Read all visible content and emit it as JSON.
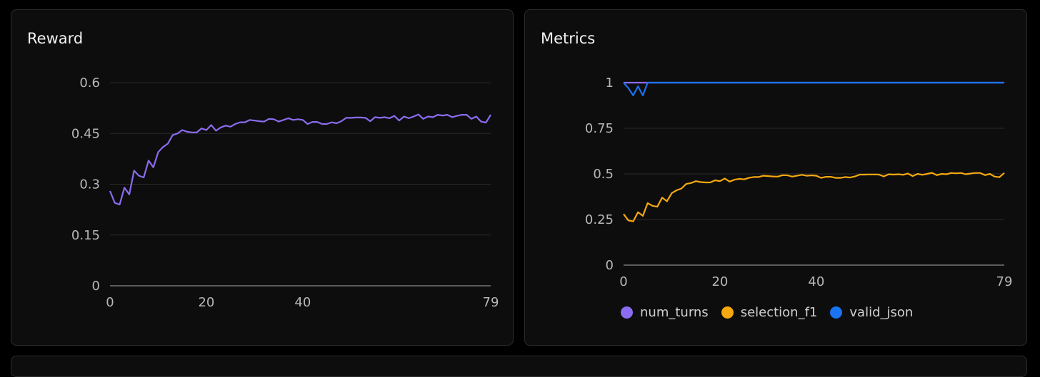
{
  "colors": {
    "num_turns": "#8b6cf0",
    "selection_f1": "#f5a80f",
    "valid_json": "#1a73f0"
  },
  "chart_data": [
    {
      "type": "line",
      "title": "Reward",
      "x": [
        0,
        1,
        2,
        3,
        4,
        5,
        6,
        7,
        8,
        9,
        10,
        11,
        12,
        13,
        14,
        15,
        16,
        17,
        18,
        19,
        20,
        21,
        22,
        23,
        24,
        25,
        26,
        27,
        28,
        29,
        30,
        31,
        32,
        33,
        34,
        35,
        36,
        37,
        38,
        39,
        40,
        41,
        42,
        43,
        44,
        45,
        46,
        47,
        48,
        49,
        50,
        51,
        52,
        53,
        54,
        55,
        56,
        57,
        58,
        59,
        60,
        61,
        62,
        63,
        64,
        65,
        66,
        67,
        68,
        69,
        70,
        71,
        72,
        73,
        74,
        75,
        76,
        77,
        78,
        79
      ],
      "series": [
        {
          "key": "num_turns",
          "values": [
            0.28,
            0.245,
            0.24,
            0.29,
            0.27,
            0.34,
            0.325,
            0.32,
            0.37,
            0.35,
            0.395,
            0.41,
            0.42,
            0.445,
            0.45,
            0.46,
            0.455,
            0.453,
            0.453,
            0.465,
            0.46,
            0.475,
            0.458,
            0.468,
            0.473,
            0.47,
            0.478,
            0.483,
            0.483,
            0.49,
            0.488,
            0.486,
            0.485,
            0.493,
            0.492,
            0.485,
            0.49,
            0.495,
            0.49,
            0.492,
            0.49,
            0.478,
            0.484,
            0.484,
            0.478,
            0.478,
            0.483,
            0.48,
            0.486,
            0.496,
            0.496,
            0.497,
            0.497,
            0.496,
            0.486,
            0.498,
            0.496,
            0.498,
            0.495,
            0.502,
            0.488,
            0.5,
            0.495,
            0.5,
            0.506,
            0.493,
            0.5,
            0.498,
            0.505,
            0.503,
            0.505,
            0.498,
            0.502,
            0.505,
            0.505,
            0.493,
            0.5,
            0.485,
            0.482,
            0.505
          ]
        }
      ],
      "xticks": [
        "0",
        "20",
        "40",
        "79"
      ],
      "xtick_values": [
        0,
        20,
        40,
        79
      ],
      "yticks": [
        "0",
        "0.15",
        "0.3",
        "0.45",
        "0.6"
      ],
      "ytick_values": [
        0,
        0.15,
        0.3,
        0.45,
        0.6
      ],
      "xlim": [
        0,
        79
      ],
      "ylim": [
        0,
        0.6
      ],
      "grid": true
    },
    {
      "type": "line",
      "title": "Metrics",
      "x": [
        0,
        1,
        2,
        3,
        4,
        5,
        6,
        7,
        8,
        9,
        10,
        11,
        12,
        13,
        14,
        15,
        16,
        17,
        18,
        19,
        20,
        21,
        22,
        23,
        24,
        25,
        26,
        27,
        28,
        29,
        30,
        31,
        32,
        33,
        34,
        35,
        36,
        37,
        38,
        39,
        40,
        41,
        42,
        43,
        44,
        45,
        46,
        47,
        48,
        49,
        50,
        51,
        52,
        53,
        54,
        55,
        56,
        57,
        58,
        59,
        60,
        61,
        62,
        63,
        64,
        65,
        66,
        67,
        68,
        69,
        70,
        71,
        72,
        73,
        74,
        75,
        76,
        77,
        78,
        79
      ],
      "series": [
        {
          "key": "num_turns",
          "name": "num_turns",
          "values": [
            1,
            1,
            1,
            1,
            1,
            1,
            1,
            1,
            1,
            1,
            1,
            1,
            1,
            1,
            1,
            1,
            1,
            1,
            1,
            1,
            1,
            1,
            1,
            1,
            1,
            1,
            1,
            1,
            1,
            1,
            1,
            1,
            1,
            1,
            1,
            1,
            1,
            1,
            1,
            1,
            1,
            1,
            1,
            1,
            1,
            1,
            1,
            1,
            1,
            1,
            1,
            1,
            1,
            1,
            1,
            1,
            1,
            1,
            1,
            1,
            1,
            1,
            1,
            1,
            1,
            1,
            1,
            1,
            1,
            1,
            1,
            1,
            1,
            1,
            1,
            1,
            1,
            1,
            1,
            1
          ]
        },
        {
          "key": "selection_f1",
          "name": "selection_f1",
          "values": [
            0.28,
            0.245,
            0.24,
            0.29,
            0.27,
            0.34,
            0.325,
            0.32,
            0.37,
            0.35,
            0.395,
            0.41,
            0.42,
            0.445,
            0.45,
            0.46,
            0.455,
            0.453,
            0.453,
            0.465,
            0.46,
            0.475,
            0.458,
            0.468,
            0.473,
            0.47,
            0.478,
            0.483,
            0.483,
            0.49,
            0.488,
            0.486,
            0.485,
            0.493,
            0.492,
            0.485,
            0.49,
            0.495,
            0.49,
            0.492,
            0.49,
            0.478,
            0.484,
            0.484,
            0.478,
            0.478,
            0.483,
            0.48,
            0.486,
            0.496,
            0.496,
            0.497,
            0.497,
            0.496,
            0.486,
            0.498,
            0.496,
            0.498,
            0.495,
            0.502,
            0.488,
            0.5,
            0.495,
            0.5,
            0.506,
            0.493,
            0.5,
            0.498,
            0.505,
            0.503,
            0.505,
            0.498,
            0.502,
            0.505,
            0.505,
            0.493,
            0.5,
            0.485,
            0.482,
            0.505
          ]
        },
        {
          "key": "valid_json",
          "name": "valid_json",
          "values": [
            1,
            0.97,
            0.93,
            0.98,
            0.93,
            1,
            1,
            1,
            1,
            1,
            1,
            1,
            1,
            1,
            1,
            1,
            1,
            1,
            1,
            1,
            1,
            1,
            1,
            1,
            1,
            1,
            1,
            1,
            1,
            1,
            1,
            1,
            1,
            1,
            1,
            1,
            1,
            1,
            1,
            1,
            1,
            1,
            1,
            1,
            1,
            1,
            1,
            1,
            1,
            1,
            1,
            1,
            1,
            1,
            1,
            1,
            1,
            1,
            1,
            1,
            1,
            1,
            1,
            1,
            1,
            1,
            1,
            1,
            1,
            1,
            1,
            1,
            1,
            1,
            1,
            1,
            1,
            1,
            1,
            1
          ]
        }
      ],
      "xticks": [
        "0",
        "20",
        "40",
        "79"
      ],
      "xtick_values": [
        0,
        20,
        40,
        79
      ],
      "yticks": [
        "0",
        "0.25",
        "0.5",
        "0.75",
        "1"
      ],
      "ytick_values": [
        0,
        0.25,
        0.5,
        0.75,
        1
      ],
      "xlim": [
        0,
        79
      ],
      "ylim": [
        0,
        1
      ],
      "grid": true,
      "legend": "bottom"
    }
  ]
}
